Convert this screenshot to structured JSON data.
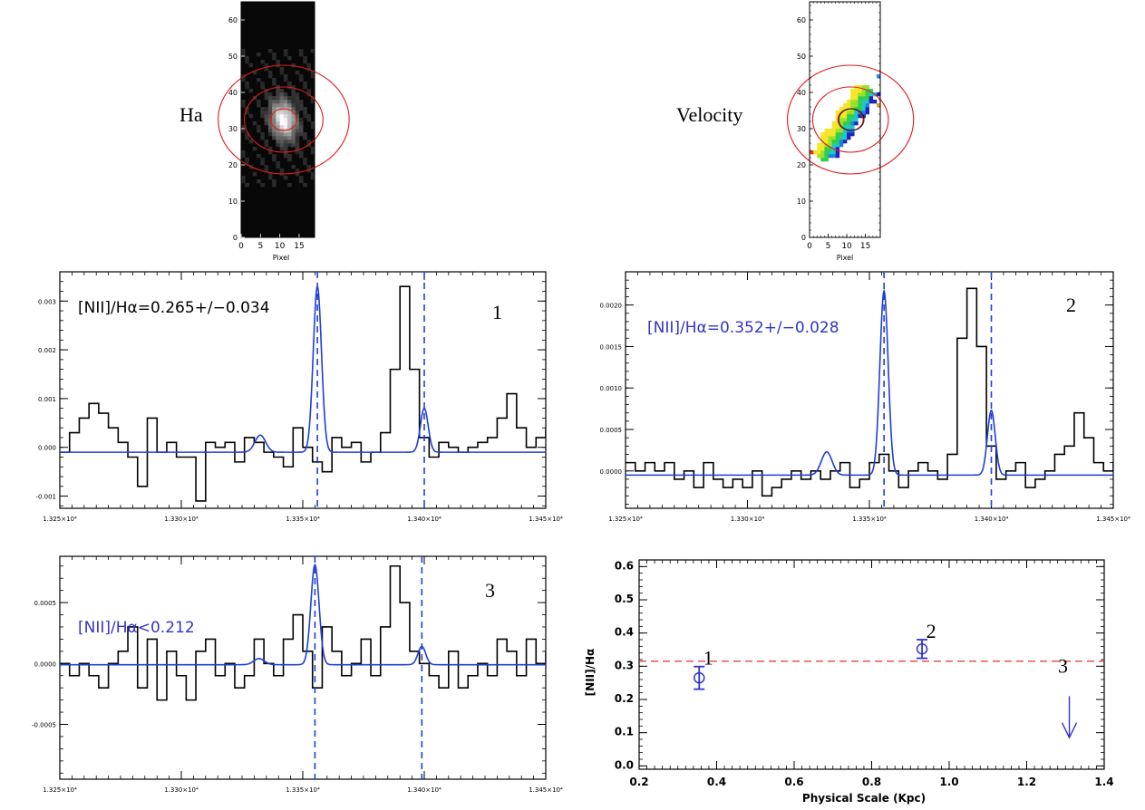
{
  "chart_data": [
    {
      "type": "image",
      "id": "ha",
      "label": "Ha",
      "xlabel": "Pixel",
      "xlim": [
        0,
        19
      ],
      "ylim": [
        0,
        65
      ],
      "xticks": [
        0,
        5,
        10,
        15
      ],
      "yticks": [
        0,
        10,
        20,
        30,
        40,
        50,
        60
      ],
      "center": [
        11,
        32.5
      ],
      "circle_radii": [
        3,
        9,
        15
      ],
      "circle_color": "#e41a1c"
    },
    {
      "type": "image",
      "id": "velocity",
      "label": "Velocity",
      "xlabel": "Pixel",
      "xlim": [
        0,
        19
      ],
      "ylim": [
        0,
        65
      ],
      "xticks": [
        0,
        5,
        10,
        15
      ],
      "yticks": [
        0,
        10,
        20,
        30,
        40,
        50,
        60
      ],
      "center": [
        11,
        32.5
      ],
      "circle_radii": [
        3,
        9,
        15
      ],
      "circle_color": "#e41a1c"
    },
    {
      "type": "line",
      "id": "spec1",
      "number": "1",
      "annotation": "[NII]/Hα=0.265+/−0.034",
      "annotation_color": "#000000",
      "xlim": [
        13250,
        13450
      ],
      "ylim": [
        -0.00125,
        0.0036
      ],
      "xticks": [
        {
          "v": 13250,
          "t": "1.325×10⁴"
        },
        {
          "v": 13300,
          "t": "1.330×10⁴"
        },
        {
          "v": 13350,
          "t": "1.335×10⁴"
        },
        {
          "v": 13400,
          "t": "1.340×10⁴"
        },
        {
          "v": 13450,
          "t": "1.345×10⁴"
        }
      ],
      "yticks": [
        {
          "v": -0.001,
          "t": "-0.001"
        },
        {
          "v": 0,
          "t": "0.000"
        },
        {
          "v": 0.001,
          "t": "0.001"
        },
        {
          "v": 0.002,
          "t": "0.002"
        },
        {
          "v": 0.003,
          "t": "0.003"
        }
      ],
      "vlines": [
        13356,
        13400
      ],
      "series": [
        {
          "x_start": 13250,
          "step": 4,
          "values": [
            -0.0001,
            0.0003,
            0.0006,
            0.0009,
            0.0007,
            0.0004,
            0.0001,
            -0.0002,
            -0.0008,
            0.0006,
            -0.0001,
            0.0001,
            -0.0002,
            -0.0002,
            -0.0011,
            0.0001,
            0.0,
            0.0001,
            -0.0003,
            0.0002,
            0.0001,
            -0.0001,
            -0.0002,
            -0.0004,
            0.0004,
            0.0,
            -0.0003,
            -0.0005,
            0.0002,
            0.0,
            0.0001,
            -0.0003,
            -0.0001,
            0.0003,
            0.0016,
            0.0033,
            0.0016,
            0.0002,
            -0.0002,
            0.0001,
            0.0,
            -0.0001,
            0.0,
            0.0001,
            0.0002,
            0.0006,
            0.0011,
            0.0004,
            0.0,
            0.0002,
            0.0004,
            0.0002,
            0.0003,
            0.0001,
            0.0002,
            -0.0002,
            0.0003,
            0.0001,
            -0.0002,
            0.0,
            0.0001,
            0.0002,
            -0.0003,
            -0.0001,
            0.0002,
            0.0004,
            0.0001,
            -0.0001,
            0.0001,
            0.0002,
            0.0
          ]
        },
        {
          "fit_baseline": -0.0001,
          "fit_lines": [
            {
              "center": 13356,
              "amp": 0.0034,
              "sigma": 1.7
            },
            {
              "center": 13400,
              "amp": 0.0009,
              "sigma": 1.6
            },
            {
              "center": 13332.5,
              "amp": 0.00035,
              "sigma": 2.2
            }
          ]
        }
      ]
    },
    {
      "type": "line",
      "id": "spec2",
      "number": "2",
      "annotation": "[NII]/Hα=0.352+/−0.028",
      "annotation_color": "#3333cc",
      "xlim": [
        13250,
        13450
      ],
      "ylim": [
        -0.00045,
        0.0024
      ],
      "xticks": [
        {
          "v": 13250,
          "t": "1.325×10⁴"
        },
        {
          "v": 13300,
          "t": "1.330×10⁴"
        },
        {
          "v": 13350,
          "t": "1.335×10⁴"
        },
        {
          "v": 13400,
          "t": "1.340×10⁴"
        },
        {
          "v": 13450,
          "t": "1.345×10⁴"
        }
      ],
      "yticks": [
        {
          "v": 0,
          "t": "0.0000"
        },
        {
          "v": 0.0005,
          "t": "0.0005"
        },
        {
          "v": 0.001,
          "t": "0.0010"
        },
        {
          "v": 0.0015,
          "t": "0.0015"
        },
        {
          "v": 0.002,
          "t": "0.0020"
        }
      ],
      "vlines": [
        13356,
        13400
      ],
      "series": [
        {
          "x_start": 13250,
          "step": 4,
          "values": [
            0.0001,
            0.0,
            0.0001,
            0.0,
            0.0001,
            -0.0001,
            0.0,
            -0.0002,
            0.0001,
            -0.0001,
            -0.0002,
            -0.0001,
            -0.0002,
            0.0,
            -0.0003,
            -0.0002,
            -0.0001,
            0.0,
            -0.0001,
            0.0,
            -0.0001,
            0.0,
            0.0001,
            -0.0002,
            -0.0001,
            0.0001,
            0.0002,
            0.0,
            -0.0002,
            0.0,
            0.0001,
            0.0,
            -0.0001,
            0.0002,
            0.0016,
            0.0022,
            0.0015,
            0.0003,
            -0.0001,
            0.0,
            0.0001,
            -0.0002,
            -0.0001,
            0.0,
            0.0002,
            0.0003,
            0.0007,
            0.0004,
            0.0001,
            0.0,
            0.0001,
            -0.0001,
            0.0001,
            0.0002,
            0.0001,
            0.0,
            -0.0001,
            0.0001,
            -0.0002,
            0.0,
            0.0001,
            0.0,
            -0.0001,
            0.0001,
            0.0,
            0.0001,
            0.0,
            -0.0001,
            0.0001,
            0.0
          ]
        },
        {
          "fit_baseline": -5e-05,
          "fit_lines": [
            {
              "center": 13356,
              "amp": 0.00222,
              "sigma": 1.7
            },
            {
              "center": 13400,
              "amp": 0.00078,
              "sigma": 1.6
            },
            {
              "center": 13332.5,
              "amp": 0.00028,
              "sigma": 2.2
            }
          ]
        }
      ]
    },
    {
      "type": "line",
      "id": "spec3",
      "number": "3",
      "annotation": "[NII]/Hα<0.212",
      "annotation_color": "#3333cc",
      "xlim": [
        13250,
        13450
      ],
      "ylim": [
        -0.00095,
        0.00088
      ],
      "xticks": [
        {
          "v": 13250,
          "t": "1.325×10⁴"
        },
        {
          "v": 13300,
          "t": "1.330×10⁴"
        },
        {
          "v": 13350,
          "t": "1.335×10⁴"
        },
        {
          "v": 13400,
          "t": "1.340×10⁴"
        },
        {
          "v": 13450,
          "t": "1.345×10⁴"
        }
      ],
      "yticks": [
        {
          "v": -0.0005,
          "t": "-0.0005"
        },
        {
          "v": 0,
          "t": "0.0000"
        },
        {
          "v": 0.0005,
          "t": "0.0005"
        }
      ],
      "vlines": [
        13355,
        13399
      ],
      "series": [
        {
          "x_start": 13250,
          "step": 4,
          "values": [
            0.0,
            -0.0001,
            0.0,
            -0.0001,
            -0.0002,
            0.0,
            0.0001,
            0.0003,
            -0.0002,
            0.0002,
            -0.0003,
            0.0001,
            -0.0001,
            -0.0003,
            0.0001,
            0.0002,
            -0.0001,
            0.0,
            -0.0002,
            -0.0001,
            0.0002,
            0.0,
            -0.0001,
            0.0002,
            0.0004,
            0.0001,
            -0.0002,
            0.0003,
            0.0001,
            -0.0001,
            0.0,
            0.0002,
            -0.0001,
            0.0003,
            0.0008,
            0.0005,
            0.0001,
            0.0,
            -0.0001,
            -0.0002,
            0.0001,
            -0.0002,
            -0.0001,
            0.0,
            -0.0001,
            0.0002,
            0.0001,
            -0.0001,
            0.0002,
            0.0,
            0.0001,
            -0.0002,
            0.0001,
            -0.0002,
            0.0001,
            0.0002,
            -0.0001,
            0.0002,
            0.0,
            -0.0001,
            0.0002,
            0.0001,
            -0.0001,
            0.0,
            0.0001,
            -0.0002,
            0.0001,
            0.0,
            0.0001,
            -0.0001,
            0.0
          ]
        },
        {
          "fit_baseline": -1e-05,
          "fit_lines": [
            {
              "center": 13355,
              "amp": 0.00082,
              "sigma": 1.7
            },
            {
              "center": 13399,
              "amp": 0.00015,
              "sigma": 1.6
            },
            {
              "center": 13332,
              "amp": 5e-05,
              "sigma": 2.2
            }
          ]
        }
      ]
    },
    {
      "type": "scatter",
      "id": "ratio",
      "xlabel": "Physical Scale (Kpc)",
      "ylabel": "[NII]/Hα",
      "xlim": [
        0.2,
        1.4
      ],
      "ylim": [
        -0.01,
        0.62
      ],
      "xticks": [
        {
          "v": 0.2,
          "t": "0.2"
        },
        {
          "v": 0.4,
          "t": "0.4"
        },
        {
          "v": 0.6,
          "t": "0.6"
        },
        {
          "v": 0.8,
          "t": "0.8"
        },
        {
          "v": 1.0,
          "t": "1.0"
        },
        {
          "v": 1.2,
          "t": "1.2"
        },
        {
          "v": 1.4,
          "t": "1.4"
        }
      ],
      "yticks": [
        {
          "v": 0.0,
          "t": "0.0"
        },
        {
          "v": 0.1,
          "t": "0.1"
        },
        {
          "v": 0.2,
          "t": "0.2"
        },
        {
          "v": 0.3,
          "t": "0.3"
        },
        {
          "v": 0.4,
          "t": "0.4"
        },
        {
          "v": 0.5,
          "t": "0.5"
        },
        {
          "v": 0.6,
          "t": "0.6"
        }
      ],
      "points": [
        {
          "label": "1",
          "x": 0.355,
          "y": 0.265,
          "err": 0.034
        },
        {
          "label": "2",
          "x": 0.93,
          "y": 0.352,
          "err": 0.028
        }
      ],
      "upper_limit": {
        "label": "3",
        "x": 1.31,
        "y": 0.212
      },
      "hline": 0.315,
      "point_color": "#3333cc",
      "hline_color": "#e41a1c"
    }
  ],
  "colors": {
    "fit": "#1f3fd6",
    "data": "#000000",
    "marker": "#3333cc",
    "ref": "#e41a1c"
  }
}
